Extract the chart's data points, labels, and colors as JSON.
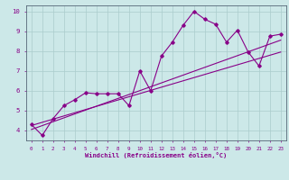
{
  "xlabel": "Windchill (Refroidissement éolien,°C)",
  "background_color": "#cce8e8",
  "line_color": "#880088",
  "grid_color": "#aacccc",
  "xlim": [
    -0.5,
    23.5
  ],
  "ylim": [
    3.5,
    10.3
  ],
  "xticks": [
    0,
    1,
    2,
    3,
    4,
    5,
    6,
    7,
    8,
    9,
    10,
    11,
    12,
    13,
    14,
    15,
    16,
    17,
    18,
    19,
    20,
    21,
    22,
    23
  ],
  "yticks": [
    4,
    5,
    6,
    7,
    8,
    9,
    10
  ],
  "series": [
    [
      0,
      4.3
    ],
    [
      1,
      3.75
    ],
    [
      2,
      4.6
    ],
    [
      3,
      5.25
    ],
    [
      4,
      5.55
    ],
    [
      5,
      5.9
    ],
    [
      6,
      5.85
    ],
    [
      7,
      5.85
    ],
    [
      8,
      5.85
    ],
    [
      9,
      5.25
    ],
    [
      10,
      7.0
    ],
    [
      11,
      6.0
    ],
    [
      12,
      7.75
    ],
    [
      13,
      8.45
    ],
    [
      14,
      9.3
    ],
    [
      15,
      10.0
    ],
    [
      16,
      9.6
    ],
    [
      17,
      9.35
    ],
    [
      18,
      8.45
    ],
    [
      19,
      9.05
    ],
    [
      20,
      7.95
    ],
    [
      21,
      7.25
    ],
    [
      22,
      8.75
    ],
    [
      23,
      8.85
    ]
  ],
  "linear_series": [
    [
      0,
      4.05
    ],
    [
      23,
      8.55
    ]
  ],
  "linear_series2": [
    [
      0,
      4.25
    ],
    [
      23,
      7.95
    ]
  ],
  "marker": "D",
  "marker_size": 1.8,
  "line_width": 0.8,
  "xlabel_fontsize": 5.0,
  "xtick_fontsize": 4.2,
  "ytick_fontsize": 5.2
}
